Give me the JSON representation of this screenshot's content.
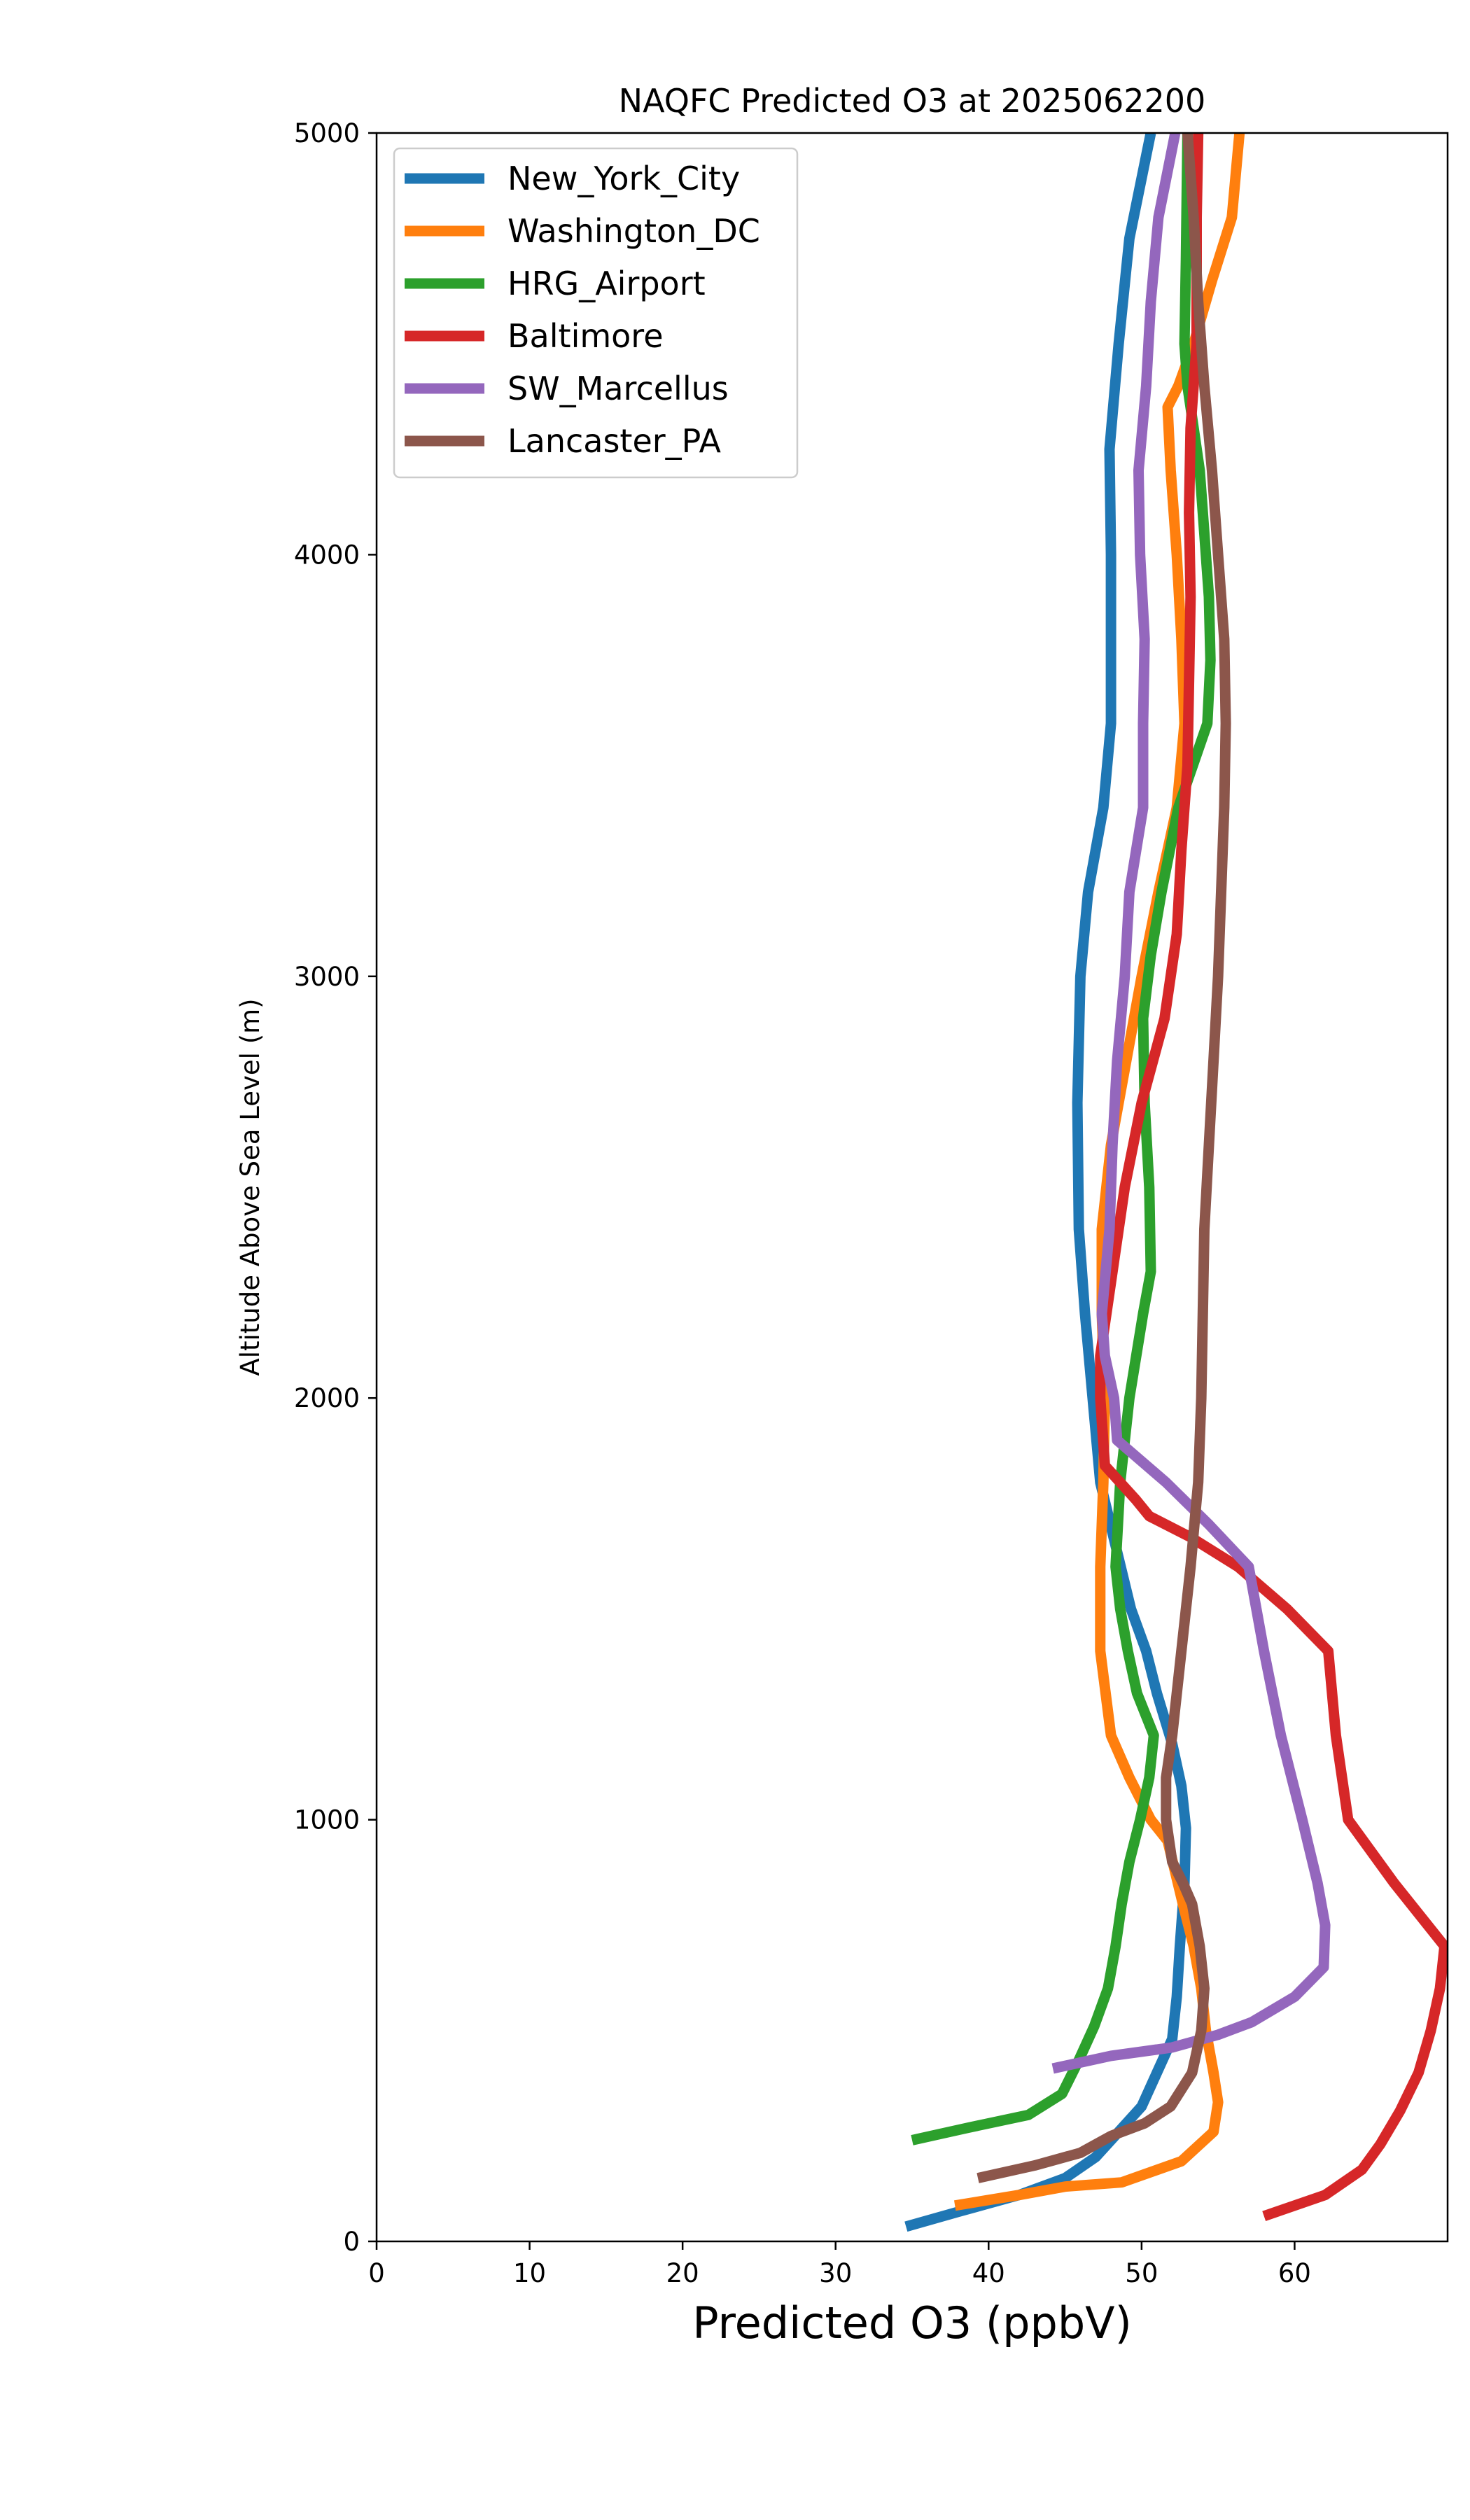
{
  "chart_data": {
    "type": "line",
    "title": "NAQFC Predicted O3 at 2025062200",
    "xlabel": "Predicted O3 (ppbV)",
    "ylabel": "Altitude Above Sea Level (m)",
    "xlim": [
      0,
      70
    ],
    "ylim": [
      0,
      5000
    ],
    "xticks": [
      0,
      10,
      20,
      30,
      40,
      50,
      60
    ],
    "yticks": [
      0,
      1000,
      2000,
      3000,
      4000,
      5000
    ],
    "grid": false,
    "legend_position": "top-left",
    "series": [
      {
        "name": "New_York_City",
        "color": "#1f77b4",
        "points": [
          [
            34.6,
            35
          ],
          [
            38,
            70
          ],
          [
            42,
            110
          ],
          [
            45,
            150
          ],
          [
            47,
            200
          ],
          [
            48.5,
            260
          ],
          [
            50,
            320
          ],
          [
            51,
            400
          ],
          [
            52,
            480
          ],
          [
            52.3,
            580
          ],
          [
            52.5,
            700
          ],
          [
            52.8,
            850
          ],
          [
            52.9,
            980
          ],
          [
            52.6,
            1080
          ],
          [
            52,
            1180
          ],
          [
            51,
            1300
          ],
          [
            50.3,
            1400
          ],
          [
            49.3,
            1500
          ],
          [
            48.3,
            1650
          ],
          [
            47.3,
            1800
          ],
          [
            46.8,
            2000
          ],
          [
            46.3,
            2200
          ],
          [
            45.9,
            2400
          ],
          [
            45.8,
            2700
          ],
          [
            46,
            3000
          ],
          [
            46.5,
            3200
          ],
          [
            47.5,
            3400
          ],
          [
            48,
            3600
          ],
          [
            48,
            3800
          ],
          [
            48,
            4000
          ],
          [
            47.9,
            4250
          ],
          [
            48.5,
            4500
          ],
          [
            49.2,
            4750
          ],
          [
            50.6,
            5000
          ]
        ]
      },
      {
        "name": "Washington_DC",
        "color": "#ff7f0e",
        "points": [
          [
            37.8,
            85
          ],
          [
            42,
            110
          ],
          [
            45,
            130
          ],
          [
            48.7,
            140
          ],
          [
            52.6,
            190
          ],
          [
            54.7,
            260
          ],
          [
            55,
            330
          ],
          [
            54.7,
            400
          ],
          [
            54.2,
            500
          ],
          [
            53.9,
            600
          ],
          [
            53.4,
            700
          ],
          [
            52.7,
            800
          ],
          [
            51.7,
            950
          ],
          [
            50.6,
            1000
          ],
          [
            49.2,
            1100
          ],
          [
            48,
            1200
          ],
          [
            47.3,
            1400
          ],
          [
            47.3,
            1600
          ],
          [
            47.5,
            1800
          ],
          [
            47.6,
            2000
          ],
          [
            47.4,
            2200
          ],
          [
            47.4,
            2400
          ],
          [
            48,
            2600
          ],
          [
            49,
            2800
          ],
          [
            50,
            3000
          ],
          [
            51.1,
            3200
          ],
          [
            52.3,
            3400
          ],
          [
            52.8,
            3600
          ],
          [
            52.6,
            3800
          ],
          [
            52.3,
            4000
          ],
          [
            51.9,
            4200
          ],
          [
            51.7,
            4350
          ],
          [
            52.4,
            4400
          ],
          [
            53.4,
            4500
          ],
          [
            54.6,
            4650
          ],
          [
            55.9,
            4800
          ],
          [
            56.4,
            5000
          ]
        ]
      },
      {
        "name": "HRG_Airport",
        "color": "#2ca02c",
        "points": [
          [
            35,
            240
          ],
          [
            38.7,
            270
          ],
          [
            42.6,
            300
          ],
          [
            44.8,
            350
          ],
          [
            45.9,
            430
          ],
          [
            46.9,
            510
          ],
          [
            47.8,
            600
          ],
          [
            48.3,
            700
          ],
          [
            48.7,
            800
          ],
          [
            49.2,
            900
          ],
          [
            49.9,
            1000
          ],
          [
            50.5,
            1100
          ],
          [
            50.8,
            1200
          ],
          [
            49.7,
            1300
          ],
          [
            49.1,
            1400
          ],
          [
            48.6,
            1500
          ],
          [
            48.3,
            1600
          ],
          [
            48.6,
            1800
          ],
          [
            49.2,
            2000
          ],
          [
            50.1,
            2200
          ],
          [
            50.6,
            2300
          ],
          [
            50.5,
            2500
          ],
          [
            50.2,
            2700
          ],
          [
            50.1,
            2900
          ],
          [
            50.6,
            3050
          ],
          [
            51.3,
            3200
          ],
          [
            52.4,
            3400
          ],
          [
            54.3,
            3600
          ],
          [
            54.5,
            3750
          ],
          [
            54.4,
            3900
          ],
          [
            54.1,
            4050
          ],
          [
            53.8,
            4200
          ],
          [
            53.4,
            4300
          ],
          [
            53,
            4400
          ],
          [
            52.8,
            4500
          ],
          [
            52.9,
            4700
          ],
          [
            53,
            5000
          ]
        ]
      },
      {
        "name": "Baltimore",
        "color": "#d62728",
        "points": [
          [
            58,
            60
          ],
          [
            62,
            110
          ],
          [
            64.4,
            170
          ],
          [
            65.6,
            230
          ],
          [
            66.9,
            310
          ],
          [
            68.1,
            400
          ],
          [
            68.9,
            500
          ],
          [
            69.5,
            600
          ],
          [
            69.8,
            700
          ],
          [
            66.5,
            850
          ],
          [
            63.5,
            1000
          ],
          [
            62.7,
            1200
          ],
          [
            62.2,
            1400
          ],
          [
            59.5,
            1500
          ],
          [
            56.3,
            1600
          ],
          [
            53.2,
            1670
          ],
          [
            50.5,
            1720
          ],
          [
            49.6,
            1760
          ],
          [
            47.6,
            1840
          ],
          [
            47.3,
            2000
          ],
          [
            47.3,
            2100
          ],
          [
            48.1,
            2300
          ],
          [
            48.9,
            2500
          ],
          [
            50,
            2700
          ],
          [
            51.5,
            2900
          ],
          [
            52.3,
            3100
          ],
          [
            52.6,
            3300
          ],
          [
            53,
            3500
          ],
          [
            53.1,
            3700
          ],
          [
            53.2,
            3900
          ],
          [
            53.1,
            4100
          ],
          [
            53.2,
            4300
          ],
          [
            53.6,
            4500
          ],
          [
            53.6,
            4800
          ],
          [
            53.7,
            5000
          ]
        ]
      },
      {
        "name": "SW_Marcellus",
        "color": "#9467bd",
        "points": [
          [
            44.2,
            410
          ],
          [
            48,
            440
          ],
          [
            52,
            460
          ],
          [
            55,
            490
          ],
          [
            57.2,
            520
          ],
          [
            60,
            580
          ],
          [
            61.9,
            650
          ],
          [
            62,
            750
          ],
          [
            61.5,
            850
          ],
          [
            60.5,
            1000
          ],
          [
            59.1,
            1200
          ],
          [
            58,
            1400
          ],
          [
            57,
            1600
          ],
          [
            54.4,
            1700
          ],
          [
            51.6,
            1800
          ],
          [
            48.4,
            1900
          ],
          [
            48.2,
            2000
          ],
          [
            47.6,
            2100
          ],
          [
            47.4,
            2200
          ],
          [
            47.9,
            2400
          ],
          [
            48.1,
            2600
          ],
          [
            48.4,
            2800
          ],
          [
            48.9,
            3000
          ],
          [
            49.2,
            3200
          ],
          [
            50.1,
            3400
          ],
          [
            50.1,
            3600
          ],
          [
            50.2,
            3800
          ],
          [
            49.9,
            4000
          ],
          [
            49.8,
            4200
          ],
          [
            50.3,
            4400
          ],
          [
            50.6,
            4600
          ],
          [
            51.1,
            4800
          ],
          [
            52.2,
            5000
          ]
        ]
      },
      {
        "name": "Lancaster_PA",
        "color": "#8c564b",
        "points": [
          [
            39.3,
            150
          ],
          [
            43,
            180
          ],
          [
            46,
            210
          ],
          [
            48,
            250
          ],
          [
            50.2,
            280
          ],
          [
            51.9,
            320
          ],
          [
            53.3,
            400
          ],
          [
            53.9,
            500
          ],
          [
            54.1,
            600
          ],
          [
            53.8,
            700
          ],
          [
            53.3,
            800
          ],
          [
            52.7,
            850
          ],
          [
            52,
            900
          ],
          [
            51.6,
            1000
          ],
          [
            51.6,
            1100
          ],
          [
            52,
            1200
          ],
          [
            52.6,
            1400
          ],
          [
            53.2,
            1600
          ],
          [
            53.7,
            1800
          ],
          [
            53.9,
            2000
          ],
          [
            54,
            2200
          ],
          [
            54.1,
            2400
          ],
          [
            54.4,
            2600
          ],
          [
            54.7,
            2800
          ],
          [
            55,
            3000
          ],
          [
            55.2,
            3200
          ],
          [
            55.4,
            3400
          ],
          [
            55.5,
            3600
          ],
          [
            55.4,
            3800
          ],
          [
            55,
            4000
          ],
          [
            54.6,
            4200
          ],
          [
            54.1,
            4400
          ],
          [
            53.7,
            4600
          ],
          [
            53.4,
            4800
          ],
          [
            53,
            5000
          ]
        ]
      }
    ]
  }
}
